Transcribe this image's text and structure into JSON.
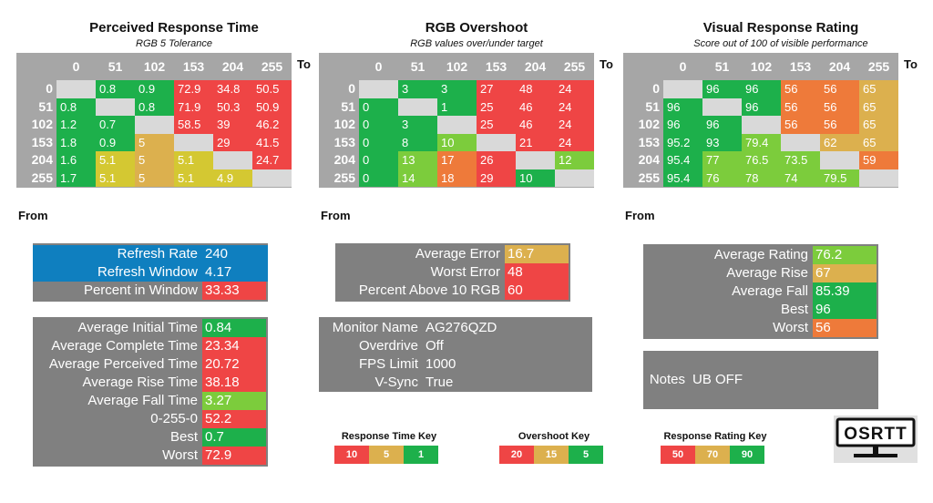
{
  "colors": {
    "green": "#1db04b",
    "light_green": "#7ccc3c",
    "yellow": "#d4c832",
    "tan": "#dcb04e",
    "orange": "#ee7a3a",
    "red": "#ef4545",
    "blue": "#0f7fbf",
    "gray": "#808080",
    "header_gray": "#a6a6a6",
    "diag_gray": "#d9d9d9"
  },
  "grids": [
    {
      "title": "Perceived Response Time",
      "subtitle": "RGB 5 Tolerance",
      "to_label": "To",
      "from_label": "From",
      "headers": [
        "0",
        "51",
        "102",
        "153",
        "204",
        "255"
      ],
      "rows": [
        {
          "label": "0",
          "cells": [
            [
              "",
              "diag"
            ],
            [
              "0.8",
              "green"
            ],
            [
              "0.9",
              "green"
            ],
            [
              "72.9",
              "red"
            ],
            [
              "34.8",
              "red"
            ],
            [
              "50.5",
              "red"
            ]
          ]
        },
        {
          "label": "51",
          "cells": [
            [
              "0.8",
              "green"
            ],
            [
              "",
              "diag"
            ],
            [
              "0.8",
              "green"
            ],
            [
              "71.9",
              "red"
            ],
            [
              "50.3",
              "red"
            ],
            [
              "50.9",
              "red"
            ]
          ]
        },
        {
          "label": "102",
          "cells": [
            [
              "1.2",
              "green"
            ],
            [
              "0.7",
              "green"
            ],
            [
              "",
              "diag"
            ],
            [
              "58.5",
              "red"
            ],
            [
              "39",
              "red"
            ],
            [
              "46.2",
              "red"
            ]
          ]
        },
        {
          "label": "153",
          "cells": [
            [
              "1.8",
              "green"
            ],
            [
              "0.9",
              "green"
            ],
            [
              "5",
              "tan"
            ],
            [
              "",
              "diag"
            ],
            [
              "29",
              "red"
            ],
            [
              "41.5",
              "red"
            ]
          ]
        },
        {
          "label": "204",
          "cells": [
            [
              "1.6",
              "green"
            ],
            [
              "5.1",
              "yellow"
            ],
            [
              "5",
              "tan"
            ],
            [
              "5.1",
              "yellow"
            ],
            [
              "",
              "diag"
            ],
            [
              "24.7",
              "red"
            ]
          ]
        },
        {
          "label": "255",
          "cells": [
            [
              "1.7",
              "green"
            ],
            [
              "5.1",
              "yellow"
            ],
            [
              "5",
              "tan"
            ],
            [
              "5.1",
              "yellow"
            ],
            [
              "4.9",
              "yellow"
            ],
            [
              "",
              "diag"
            ]
          ]
        }
      ]
    },
    {
      "title": "RGB Overshoot",
      "subtitle": "RGB values over/under target",
      "to_label": "To",
      "from_label": "From",
      "headers": [
        "0",
        "51",
        "102",
        "153",
        "204",
        "255"
      ],
      "rows": [
        {
          "label": "0",
          "cells": [
            [
              "",
              "diag"
            ],
            [
              "3",
              "green"
            ],
            [
              "3",
              "green"
            ],
            [
              "27",
              "red"
            ],
            [
              "48",
              "red"
            ],
            [
              "24",
              "red"
            ]
          ]
        },
        {
          "label": "51",
          "cells": [
            [
              "0",
              "green"
            ],
            [
              "",
              "diag"
            ],
            [
              "1",
              "green"
            ],
            [
              "25",
              "red"
            ],
            [
              "46",
              "red"
            ],
            [
              "24",
              "red"
            ]
          ]
        },
        {
          "label": "102",
          "cells": [
            [
              "0",
              "green"
            ],
            [
              "3",
              "green"
            ],
            [
              "",
              "diag"
            ],
            [
              "25",
              "red"
            ],
            [
              "46",
              "red"
            ],
            [
              "24",
              "red"
            ]
          ]
        },
        {
          "label": "153",
          "cells": [
            [
              "0",
              "green"
            ],
            [
              "8",
              "green"
            ],
            [
              "10",
              "light_green"
            ],
            [
              "",
              "diag"
            ],
            [
              "21",
              "red"
            ],
            [
              "24",
              "red"
            ]
          ]
        },
        {
          "label": "204",
          "cells": [
            [
              "0",
              "green"
            ],
            [
              "13",
              "light_green"
            ],
            [
              "17",
              "orange"
            ],
            [
              "26",
              "red"
            ],
            [
              "",
              "diag"
            ],
            [
              "12",
              "light_green"
            ]
          ]
        },
        {
          "label": "255",
          "cells": [
            [
              "0",
              "green"
            ],
            [
              "14",
              "light_green"
            ],
            [
              "18",
              "orange"
            ],
            [
              "29",
              "red"
            ],
            [
              "10",
              "green"
            ],
            [
              "",
              "diag"
            ]
          ]
        }
      ]
    },
    {
      "title": "Visual Response Rating",
      "subtitle": "Score out of 100 of visible performance",
      "to_label": "To",
      "from_label": "From",
      "headers": [
        "0",
        "51",
        "102",
        "153",
        "204",
        "255"
      ],
      "rows": [
        {
          "label": "0",
          "cells": [
            [
              "",
              "diag"
            ],
            [
              "96",
              "green"
            ],
            [
              "96",
              "green"
            ],
            [
              "56",
              "orange"
            ],
            [
              "56",
              "orange"
            ],
            [
              "65",
              "tan"
            ]
          ]
        },
        {
          "label": "51",
          "cells": [
            [
              "96",
              "green"
            ],
            [
              "",
              "diag"
            ],
            [
              "96",
              "green"
            ],
            [
              "56",
              "orange"
            ],
            [
              "56",
              "orange"
            ],
            [
              "65",
              "tan"
            ]
          ]
        },
        {
          "label": "102",
          "cells": [
            [
              "96",
              "green"
            ],
            [
              "96",
              "green"
            ],
            [
              "",
              "diag"
            ],
            [
              "56",
              "orange"
            ],
            [
              "56",
              "orange"
            ],
            [
              "65",
              "tan"
            ]
          ]
        },
        {
          "label": "153",
          "cells": [
            [
              "95.2",
              "green"
            ],
            [
              "93",
              "green"
            ],
            [
              "79.4",
              "light_green"
            ],
            [
              "",
              "diag"
            ],
            [
              "62",
              "tan"
            ],
            [
              "65",
              "tan"
            ]
          ]
        },
        {
          "label": "204",
          "cells": [
            [
              "95.4",
              "green"
            ],
            [
              "77",
              "light_green"
            ],
            [
              "76.5",
              "light_green"
            ],
            [
              "73.5",
              "light_green"
            ],
            [
              "",
              "diag"
            ],
            [
              "59",
              "orange"
            ]
          ]
        },
        {
          "label": "255",
          "cells": [
            [
              "95.4",
              "green"
            ],
            [
              "76",
              "light_green"
            ],
            [
              "78",
              "light_green"
            ],
            [
              "74",
              "light_green"
            ],
            [
              "79.5",
              "light_green"
            ],
            [
              "",
              "diag"
            ]
          ]
        }
      ]
    }
  ],
  "refresh": [
    {
      "label": "Refresh Rate",
      "value": "240",
      "bg": "blue",
      "vbg": "blue"
    },
    {
      "label": "Refresh Window",
      "value": "4.17",
      "bg": "blue",
      "vbg": "blue"
    },
    {
      "label": "Percent in Window",
      "value": "33.33",
      "bg": "gray",
      "vbg": "red"
    }
  ],
  "stats": [
    {
      "label": "Average Initial Time",
      "value": "0.84",
      "vbg": "green"
    },
    {
      "label": "Average Complete Time",
      "value": "23.34",
      "vbg": "red"
    },
    {
      "label": "Average Perceived Time",
      "value": "20.72",
      "vbg": "red"
    },
    {
      "label": "Average Rise Time",
      "value": "38.18",
      "vbg": "red"
    },
    {
      "label": "Average Fall Time",
      "value": "3.27",
      "vbg": "light_green"
    },
    {
      "label": "0-255-0",
      "value": "52.2",
      "vbg": "red"
    },
    {
      "label": "Best",
      "value": "0.7",
      "vbg": "green"
    },
    {
      "label": "Worst",
      "value": "72.9",
      "vbg": "red"
    }
  ],
  "errors": [
    {
      "label": "Average Error",
      "value": "16.7",
      "vbg": "tan"
    },
    {
      "label": "Worst Error",
      "value": "48",
      "vbg": "red"
    },
    {
      "label": "Percent Above 10 RGB",
      "value": "60",
      "vbg": "red"
    }
  ],
  "monitor": [
    {
      "label": "Monitor Name",
      "value": "AG276QZD"
    },
    {
      "label": "Overdrive",
      "value": "Off"
    },
    {
      "label": "FPS Limit",
      "value": "1000"
    },
    {
      "label": "V-Sync",
      "value": "True"
    }
  ],
  "ratings": [
    {
      "label": "Average Rating",
      "value": "76.2",
      "vbg": "light_green"
    },
    {
      "label": "Average Rise",
      "value": "67",
      "vbg": "tan"
    },
    {
      "label": "Average Fall",
      "value": "85.39",
      "vbg": "green"
    },
    {
      "label": "Best",
      "value": "96",
      "vbg": "green"
    },
    {
      "label": "Worst",
      "value": "56",
      "vbg": "orange"
    }
  ],
  "notes": {
    "label": "Notes",
    "value": "UB OFF"
  },
  "keys": [
    {
      "title": "Response Time Key",
      "items": [
        [
          "10",
          "red"
        ],
        [
          "5",
          "tan"
        ],
        [
          "1",
          "green"
        ]
      ]
    },
    {
      "title": "Overshoot Key",
      "items": [
        [
          "20",
          "red"
        ],
        [
          "15",
          "tan"
        ],
        [
          "5",
          "green"
        ]
      ]
    },
    {
      "title": "Response Rating Key",
      "items": [
        [
          "50",
          "red"
        ],
        [
          "70",
          "tan"
        ],
        [
          "90",
          "green"
        ]
      ]
    }
  ],
  "logo": {
    "text": "OSRTT",
    "icon": "monitor-logo-icon"
  }
}
